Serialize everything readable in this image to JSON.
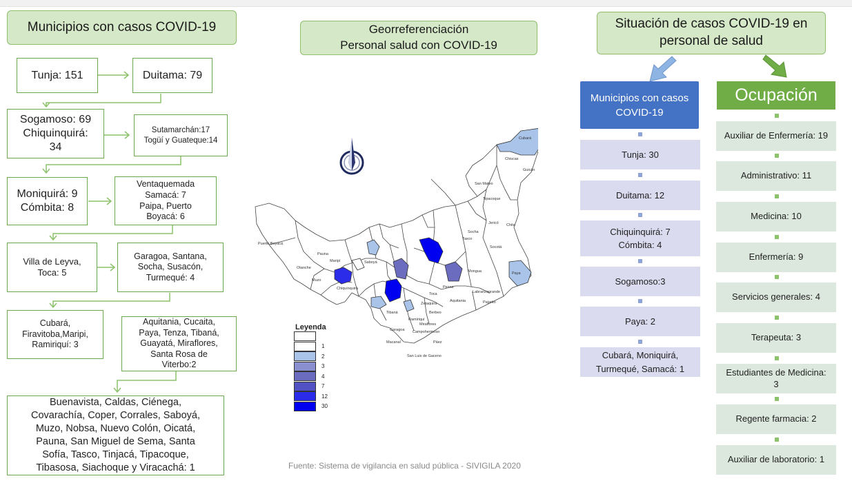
{
  "left": {
    "title": "Municipios con casos COVID-19",
    "boxes": [
      "Tunja: 151",
      "Duitama: 79",
      "Sogamoso: 69\nChiquinquirá:\n34",
      "Sutamarchán:17\nTogüí y Guateque:14",
      "Moniquirá: 9\nCómbita: 8",
      "Ventaquemada\nSamacá: 7\nPaipa, Puerto\nBoyacá: 6",
      "Villa de Leyva,\nToca: 5",
      "Garagoa, Santana,\nSocha, Susacón,\nTurmequé: 4",
      "Cubará,\nFiravitoba,Maripi,\nRamiriquí: 3",
      "Aquitania, Cucaita,\nPaya, Tenza, Tibaná,\nGuayatá, Miraflores,\nSanta Rosa de\nViterbo:2",
      "Buenavista, Caldas, Ciénega,\nCovarachía, Coper, Corrales, Saboyá,\nMuzo, Nobsa, Nuevo Colón, Oicatá,\nPauna, San Miguel de Sema, Santa\nSofía, Tasco, Tinjacá, Tipacoque,\nTibasosa, Siachoque y Viracachá: 1"
    ]
  },
  "center": {
    "title_line1": "Georreferenciación",
    "title_line2": "Personal salud con COVID-19",
    "legend": {
      "title": "Leyenda",
      "items": [
        {
          "label": "",
          "color": "#ffffff"
        },
        {
          "label": "1",
          "color": "#ffffff"
        },
        {
          "label": "2",
          "color": "#a9c4e8"
        },
        {
          "label": "3",
          "color": "#8a8fd0"
        },
        {
          "label": "4",
          "color": "#6b6cc0"
        },
        {
          "label": "7",
          "color": "#5151c4"
        },
        {
          "label": "12",
          "color": "#2b2bea"
        },
        {
          "label": "30",
          "color": "#0000f0"
        }
      ]
    },
    "map_labels": {
      "cubara": "Cubará",
      "chiscas": "Chiscas",
      "guican": "Guicán",
      "puerto_boyaca": "Puerto Boyacá",
      "paya": "Paya",
      "socota": "Socotá",
      "labranzagrande": "Labranzagrande",
      "pajarito": "Pajarito",
      "aquitania": "Aquitania",
      "toca": "Toca",
      "pesca": "Pesca",
      "paez": "Páez",
      "campohermoso": "Campohermoso",
      "san_luis": "San Luis de Gaceno",
      "otanche": "Otanche",
      "muzo": "Muzo",
      "saboya": "Saboyá",
      "ramiriqui": "Ramiriquí",
      "garagoa": "Garagoa",
      "miraflores": "Miraflores",
      "macanal": "Macanal",
      "chita": "Chita",
      "jerico": "Jericó",
      "tasco": "Tasco",
      "socha": "Socha",
      "mongua": "Mongua",
      "tibana": "Tibaná",
      "zetaquira": "Zetaquira",
      "berbeo": "Berbeo",
      "pauna": "Pauna",
      "maripi": "Maripí",
      "chiquinquira": "Chiquinquirá",
      "san_mateo": "San Mateo",
      "tipacoque": "Tipacoque"
    },
    "source": "Fuente: Sistema de vigilancia en salud pública - SIVIGILA 2020"
  },
  "right": {
    "title": "Situación de casos COVID-19 en personal de salud",
    "muni_header": "Municipios con casos\nCOVID-19",
    "muni_items": [
      "Tunja: 30",
      "Duitama: 12",
      "Chiquinquirá: 7\nCómbita: 4",
      "Sogamoso:3",
      "Paya: 2",
      "Cubará, Moniquirá,\nTurmequé, Samacá: 1"
    ],
    "occ_header": "Ocupación",
    "occ_items": [
      "Auxiliar de Enfermería: 19",
      "Administrativo:  11",
      "Medicina: 10",
      "Enfermería: 9",
      "Servicios generales: 4",
      "Terapeuta: 3",
      "Estudiantes de Medicina:\n3",
      "Regente farmacia: 2",
      "Auxiliar de laboratorio: 1"
    ]
  },
  "colors": {
    "banner_green": "#d5e8c8",
    "box_border_green": "#6aa84f",
    "blue_header": "#4472c4",
    "green_header": "#70ad47",
    "lavender": "#dadbef",
    "mint": "#dce8de"
  },
  "icons": [
    "compass-rose-icon",
    "arrow-down-left-icon",
    "arrow-down-right-icon"
  ]
}
